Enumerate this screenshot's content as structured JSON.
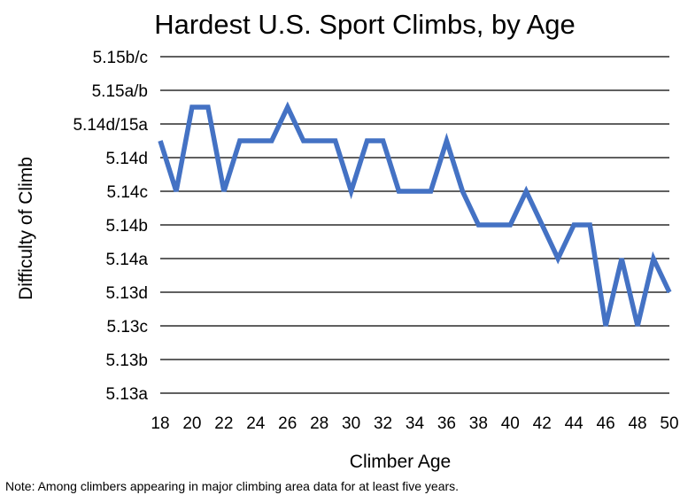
{
  "chart_data": {
    "type": "line",
    "title": "Hardest U.S. Sport Climbs, by Age",
    "xlabel": "Climber Age",
    "ylabel": "Difficulty of Climb",
    "note": "Note:  Among climbers appearing in major climbing area data for at least five years.",
    "grid": true,
    "legend": "none",
    "line_color": "#4472C4",
    "x_ticks": [
      18,
      20,
      22,
      24,
      26,
      28,
      30,
      32,
      34,
      36,
      38,
      40,
      42,
      44,
      46,
      48,
      50
    ],
    "xlim": [
      18,
      50
    ],
    "y_ticks": [
      "5.13a",
      "5.13b",
      "5.13c",
      "5.13d",
      "5.14a",
      "5.14b",
      "5.14c",
      "5.14d",
      "5.14d/15a",
      "5.15a/b",
      "5.15b/c"
    ],
    "ylim": [
      0,
      10
    ],
    "series": [
      {
        "x": [
          18,
          19,
          20,
          21,
          22,
          23,
          24,
          25,
          26,
          27,
          28,
          29,
          30,
          31,
          32,
          33,
          34,
          35,
          36,
          37,
          38,
          39,
          40,
          41,
          42,
          43,
          44,
          45,
          46,
          47,
          48,
          49,
          50
        ],
        "values": [
          7.5,
          6,
          8.5,
          8.5,
          6,
          7.5,
          7.5,
          7.5,
          8.5,
          7.5,
          7.5,
          7.5,
          6,
          7.5,
          7.5,
          6,
          6,
          6,
          7.5,
          6,
          5,
          5,
          5,
          6,
          5,
          4,
          5,
          5,
          2,
          4,
          2,
          4,
          3
        ]
      }
    ]
  }
}
